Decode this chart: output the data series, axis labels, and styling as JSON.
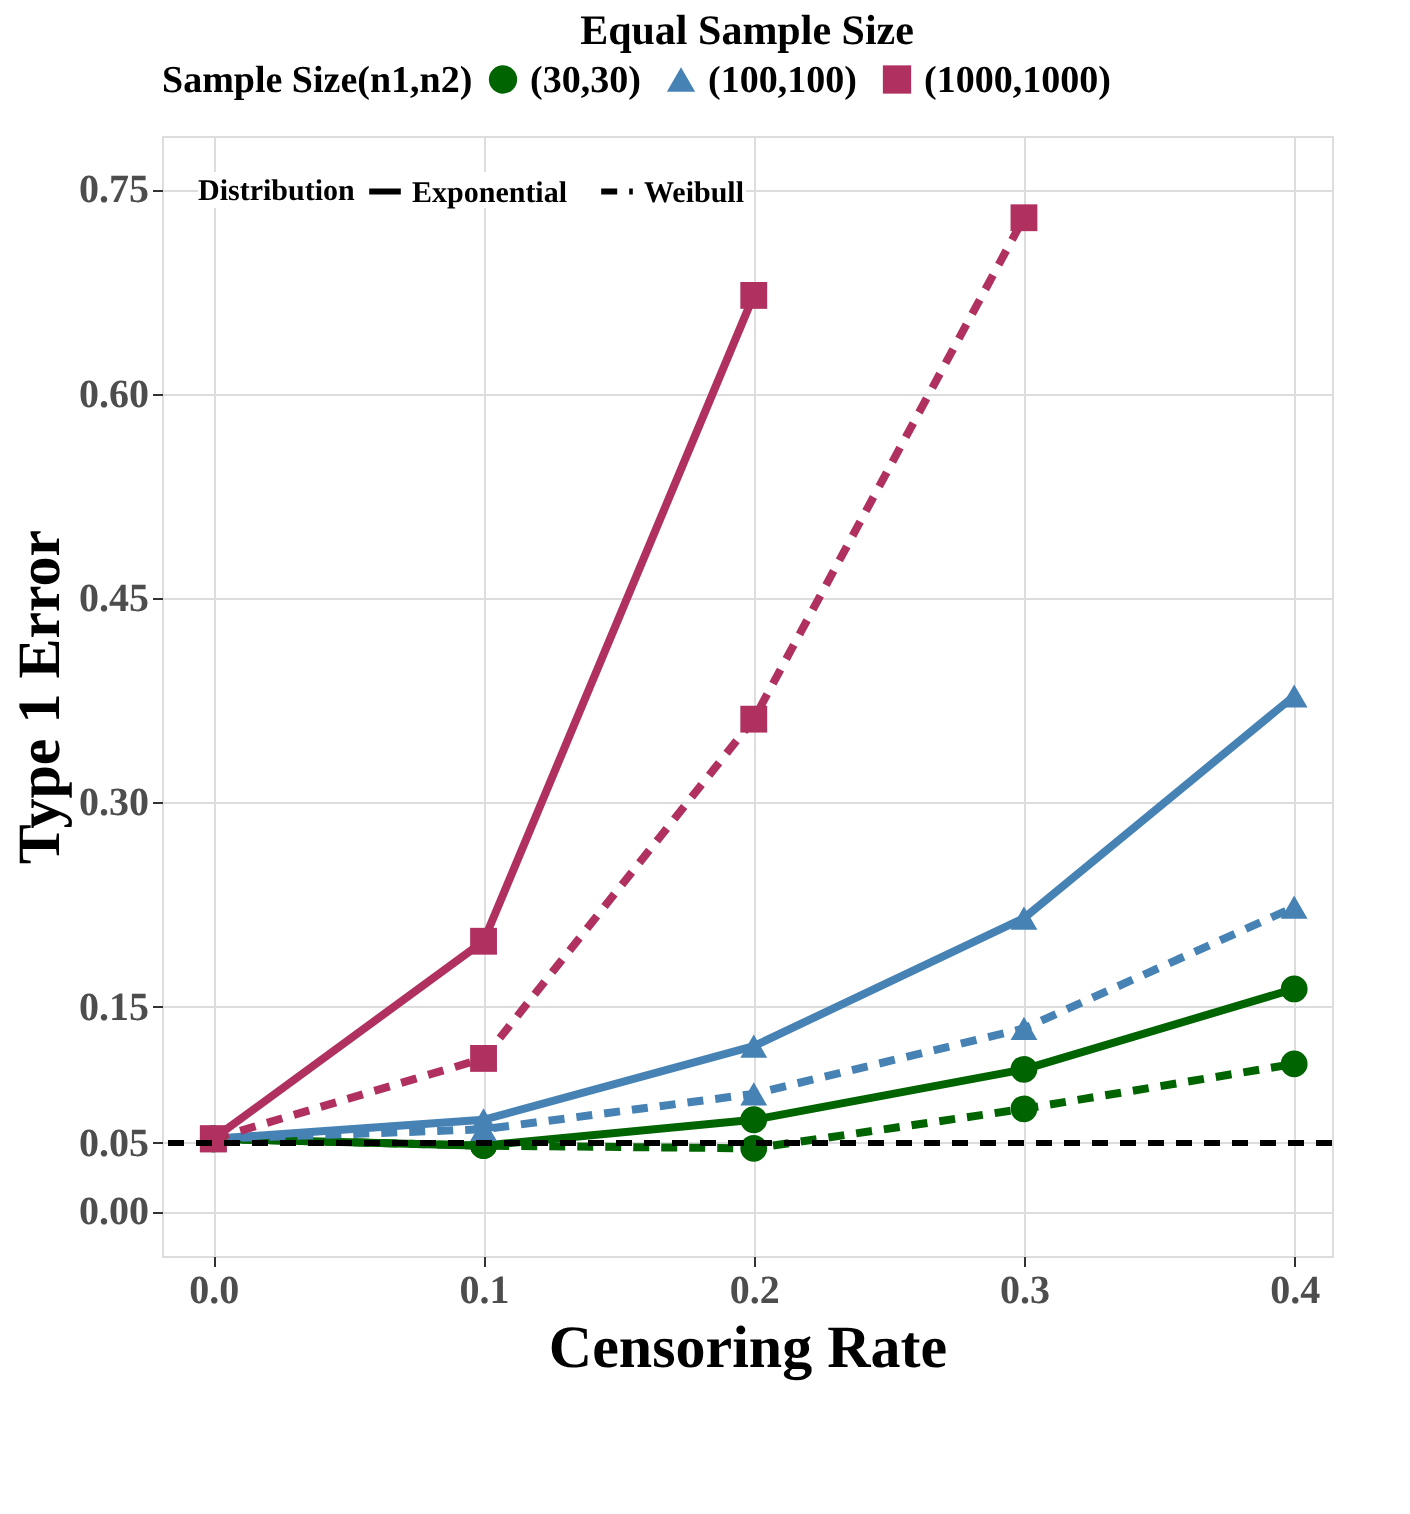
{
  "chart_data": {
    "type": "line",
    "title": "Equal Sample Size",
    "xlabel": "Censoring Rate",
    "ylabel": "Type 1 Error",
    "legend_title": "Sample Size(n1,n2)",
    "legend": "top",
    "x": [
      0.0,
      0.1,
      0.2,
      0.3,
      0.4
    ],
    "series": [
      {
        "name": "(30,30)",
        "color": "#006400",
        "marker": "circle",
        "line_style": "solid",
        "values": [
          0.053,
          0.048,
          0.067,
          0.104,
          0.163
        ]
      },
      {
        "color": "#006400",
        "marker": "circle",
        "line_style": "dashed",
        "values": [
          0.053,
          0.048,
          0.046,
          0.075,
          0.108
        ]
      },
      {
        "name": "(100,100)",
        "color": "#4682b4",
        "marker": "triangle",
        "line_style": "solid",
        "values": [
          0.053,
          0.067,
          0.121,
          0.215,
          0.378
        ]
      },
      {
        "color": "#4682b4",
        "marker": "triangle",
        "line_style": "dashed",
        "values": [
          0.053,
          0.06,
          0.086,
          0.134,
          0.223
        ]
      },
      {
        "name": "(1000,1000)",
        "color": "#b03060",
        "marker": "square",
        "line_style": "solid",
        "values": [
          0.053,
          0.198,
          0.672,
          null,
          null
        ]
      },
      {
        "color": "#b03060",
        "marker": "square",
        "line_style": "dashed",
        "values": [
          0.053,
          0.112,
          0.361,
          0.729,
          null
        ]
      }
    ],
    "annotations": [
      "Distribution",
      "Exponential",
      "Weibull"
    ],
    "xlim": [
      -0.019,
      0.414
    ],
    "xticks": [
      {
        "value": 0.0,
        "label": "0.0"
      },
      0.1,
      0.2,
      0.3,
      0.4
    ],
    "ylim": [
      -0.033,
      0.789
    ],
    "yticks": [
      {
        "value": 0.0,
        "label": "0.00"
      },
      0.05,
      0.15,
      {
        "value": 0.3,
        "label": "0.30"
      },
      0.45,
      {
        "value": 0.6,
        "label": "0.60"
      },
      0.75
    ],
    "ref_lines": [
      {
        "axis": "y",
        "value": 0.05,
        "label": null,
        "color": "#000000",
        "line_style": "dashed"
      }
    ],
    "grid": true
  }
}
